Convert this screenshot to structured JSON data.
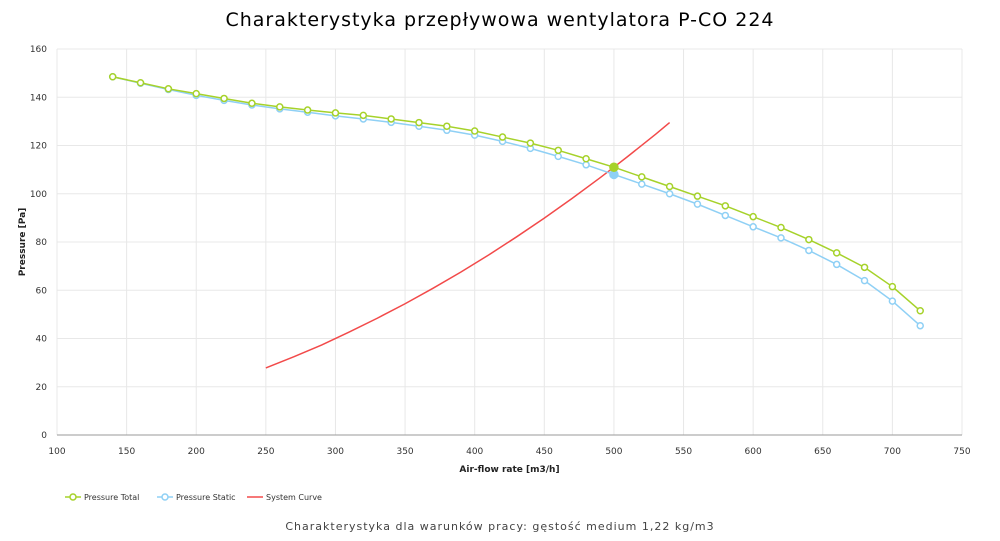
{
  "chart_data": {
    "type": "line",
    "title": "Charakterystyka przepływowa wentylatora P-CO 224",
    "subtitle": "Charakterystyka dla warunków pracy: gęstość medium 1,22 kg/m3",
    "xlabel": "Air-flow rate [m3/h]",
    "ylabel": "Pressure [Pa]",
    "xlim": [
      100,
      750
    ],
    "ylim": [
      0,
      160
    ],
    "xticks": [
      100,
      150,
      200,
      250,
      300,
      350,
      400,
      450,
      500,
      550,
      600,
      650,
      700,
      750
    ],
    "yticks": [
      0,
      20,
      40,
      60,
      80,
      100,
      120,
      140,
      160
    ],
    "grid": true,
    "legend_position": "bottom-left",
    "series": [
      {
        "name": "Pressure Total",
        "color": "#a6d22a",
        "marker": "circle",
        "x": [
          140,
          160,
          180,
          200,
          220,
          240,
          260,
          280,
          300,
          320,
          340,
          360,
          380,
          400,
          420,
          440,
          460,
          480,
          500,
          520,
          540,
          560,
          580,
          600,
          620,
          640,
          660,
          680,
          700,
          720
        ],
        "y": [
          148.5,
          146,
          143.5,
          141.5,
          139.5,
          137.5,
          136,
          134.7,
          133.5,
          132.5,
          131,
          129.5,
          128,
          126,
          123.5,
          121,
          118,
          114.5,
          111,
          107,
          103,
          99,
          95,
          90.5,
          86,
          81,
          75.5,
          69.5,
          61.5,
          51.5
        ],
        "highlight_x": 500
      },
      {
        "name": "Pressure Static",
        "color": "#8fd0f5",
        "marker": "circle",
        "x": [
          140,
          160,
          180,
          200,
          220,
          240,
          260,
          280,
          300,
          320,
          340,
          360,
          380,
          400,
          420,
          440,
          460,
          480,
          500,
          520,
          540,
          560,
          580,
          600,
          620,
          640,
          660,
          680,
          700,
          720
        ],
        "y": [
          148.5,
          145.8,
          143.2,
          140.8,
          138.7,
          136.8,
          135.2,
          133.8,
          132.3,
          131,
          129.6,
          128,
          126.3,
          124.3,
          121.7,
          118.8,
          115.5,
          112,
          108,
          104,
          100,
          95.7,
          91,
          86.3,
          81.7,
          76.5,
          70.7,
          64,
          55.5,
          45.3
        ],
        "highlight_x": 500
      },
      {
        "name": "System Curve",
        "color": "#f24a4a",
        "marker": "none",
        "x": [
          250,
          270,
          290,
          310,
          330,
          350,
          370,
          390,
          410,
          430,
          450,
          470,
          490,
          500,
          510,
          530,
          540
        ],
        "y": [
          27.8,
          32.4,
          37.3,
          42.7,
          48.4,
          54.4,
          60.8,
          67.5,
          74.6,
          82.1,
          89.9,
          98.1,
          106.6,
          111,
          115.5,
          124.7,
          129.5
        ]
      }
    ]
  }
}
